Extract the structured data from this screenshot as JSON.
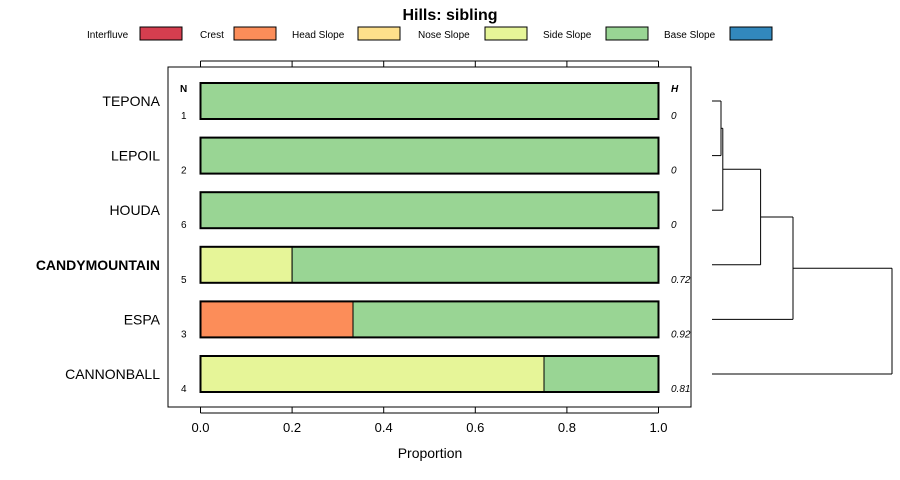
{
  "chart_data": {
    "type": "bar",
    "orientation": "horizontal-stacked",
    "title": "Hills: sibling",
    "xlabel": "Proportion",
    "xlim": [
      0,
      1
    ],
    "xticks": [
      "0.0",
      "0.2",
      "0.4",
      "0.6",
      "0.8",
      "1.0"
    ],
    "col_header_n": "N",
    "col_header_h": "H",
    "legend": [
      {
        "name": "Interfluve",
        "color": "#d53e4f"
      },
      {
        "name": "Crest",
        "color": "#fc8d59"
      },
      {
        "name": "Head Slope",
        "color": "#fee08b"
      },
      {
        "name": "Nose Slope",
        "color": "#e6f598"
      },
      {
        "name": "Side Slope",
        "color": "#99d594"
      },
      {
        "name": "Base Slope",
        "color": "#3288bd"
      }
    ],
    "rows": [
      {
        "label": "TEPONA",
        "n": "1",
        "h": "0",
        "bold": false,
        "segments": [
          {
            "class": "Side Slope",
            "value": 1.0
          }
        ]
      },
      {
        "label": "LEPOIL",
        "n": "2",
        "h": "0",
        "bold": false,
        "segments": [
          {
            "class": "Side Slope",
            "value": 1.0
          }
        ]
      },
      {
        "label": "HOUDA",
        "n": "6",
        "h": "0",
        "bold": false,
        "segments": [
          {
            "class": "Side Slope",
            "value": 1.0
          }
        ]
      },
      {
        "label": "CANDYMOUNTAIN",
        "n": "5",
        "h": "0.72",
        "bold": true,
        "segments": [
          {
            "class": "Nose Slope",
            "value": 0.2
          },
          {
            "class": "Side Slope",
            "value": 0.8
          }
        ]
      },
      {
        "label": "ESPA",
        "n": "3",
        "h": "0.92",
        "bold": false,
        "segments": [
          {
            "class": "Crest",
            "value": 0.333
          },
          {
            "class": "Side Slope",
            "value": 0.667
          }
        ]
      },
      {
        "label": "CANNONBALL",
        "n": "4",
        "h": "0.81",
        "bold": false,
        "segments": [
          {
            "class": "Nose Slope",
            "value": 0.75
          },
          {
            "class": "Side Slope",
            "value": 0.25
          }
        ]
      }
    ],
    "dendrogram": {
      "type": "hierarchical-clustering",
      "merges": [
        {
          "left": "TEPONA",
          "right": "LEPOIL",
          "height": 0.05
        },
        {
          "left": "TEPONA+LEPOIL",
          "right": "HOUDA",
          "height": 0.06
        },
        {
          "left": "TEPONA+LEPOIL+HOUDA",
          "right": "CANDYMOUNTAIN",
          "height": 0.27
        },
        {
          "left": "TEPONA+LEPOIL+HOUDA+CANDYMOUNTAIN",
          "right": "ESPA",
          "height": 0.45
        },
        {
          "left": "TEPONA+LEPOIL+HOUDA+CANDYMOUNTAIN+ESPA",
          "right": "CANNONBALL",
          "height": 1.0
        }
      ]
    }
  }
}
